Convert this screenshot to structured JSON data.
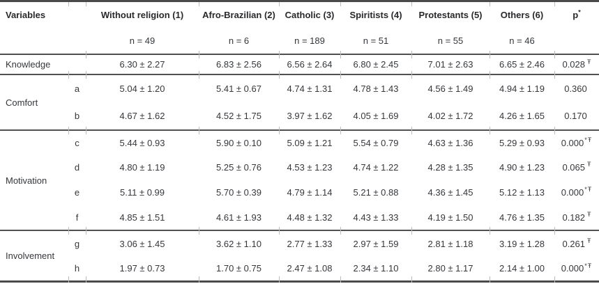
{
  "table": {
    "variables_header": "Variables",
    "p_header": {
      "base": "p",
      "sup": "*"
    },
    "religion_columns": [
      {
        "label": "Without religion (1)",
        "n": "n = 49"
      },
      {
        "label": "Afro-Brazilian (2)",
        "n": "n = 6"
      },
      {
        "label": "Catholic (3)",
        "n": "n = 189"
      },
      {
        "label": "Spiritists (4)",
        "n": "n = 51"
      },
      {
        "label": "Protestants (5)",
        "n": "n = 55"
      },
      {
        "label": "Others (6)",
        "n": "n = 46"
      }
    ],
    "groups": [
      {
        "name": "Knowledge",
        "rows": [
          {
            "letter": "",
            "values": [
              "6.30 ± 2.27",
              "6.83 ± 2.56",
              "6.56 ± 2.64",
              "6.80 ± 2.45",
              "7.01 ± 2.63",
              "6.65 ± 2.46"
            ],
            "p": "0.028",
            "p_sup": "Ŧ"
          }
        ]
      },
      {
        "name": "Comfort",
        "rows": [
          {
            "letter": "a",
            "values": [
              "5.04 ± 1.20",
              "5.41 ± 0.67",
              "4.74 ± 1.31",
              "4.78 ± 1.43",
              "4.56 ± 1.49",
              "4.94 ± 1.19"
            ],
            "p": "0.360",
            "p_sup": ""
          },
          {
            "letter": "b",
            "values": [
              "4.67 ± 1.62",
              "4.52 ± 1.75",
              "3.97 ± 1.62",
              "4.05 ± 1.69",
              "4.02 ± 1.72",
              "4.26 ± 1.65"
            ],
            "p": "0.170",
            "p_sup": ""
          }
        ]
      },
      {
        "name": "Motivation",
        "rows": [
          {
            "letter": "c",
            "values": [
              "5.44 ± 0.93",
              "5.90 ± 0.10",
              "5.09 ± 1.21",
              "5.54 ± 0.79",
              "4.63 ± 1.36",
              "5.29 ± 0.93"
            ],
            "p": "0.000",
            "p_sup": "*Ŧ"
          },
          {
            "letter": "d",
            "values": [
              "4.80 ± 1.19",
              "5.25 ± 0.76",
              "4.53 ± 1.23",
              "4.74 ± 1.22",
              "4.28 ± 1.35",
              "4.90 ± 1.23"
            ],
            "p": "0.065",
            "p_sup": "Ŧ"
          },
          {
            "letter": "e",
            "values": [
              "5.11 ± 0.99",
              "5.70 ± 0.39",
              "4.79 ± 1.14",
              "5.21 ± 0.88",
              "4.36 ± 1.45",
              "5.12 ± 1.13"
            ],
            "p": "0.000",
            "p_sup": "*Ŧ"
          },
          {
            "letter": "f",
            "values": [
              "4.85 ± 1.51",
              "4.61 ± 1.93",
              "4.48 ± 1.32",
              "4.43 ± 1.33",
              "4.19 ± 1.50",
              "4.76 ± 1.35"
            ],
            "p": "0.182",
            "p_sup": "Ŧ"
          }
        ]
      },
      {
        "name": "Involvement",
        "rows": [
          {
            "letter": "g",
            "values": [
              "3.06 ± 1.45",
              "3.62 ± 1.10",
              "2.77 ± 1.33",
              "2.97 ± 1.59",
              "2.81 ± 1.18",
              "3.19 ± 1.28"
            ],
            "p": "0.261",
            "p_sup": "Ŧ"
          },
          {
            "letter": "h",
            "values": [
              "1.97 ± 0.73",
              "1.70 ± 0.75",
              "2.47 ± 1.08",
              "2.34 ± 1.10",
              "2.80 ± 1.17",
              "2.14 ± 1.00"
            ],
            "p": "0.000",
            "p_sup": "*Ŧ"
          }
        ]
      }
    ],
    "colors": {
      "text": "#35373b",
      "rule_dark": "#4a4a4a",
      "rule_inner": "#4f4f4f",
      "tick_light": "#bdbdbd"
    }
  }
}
